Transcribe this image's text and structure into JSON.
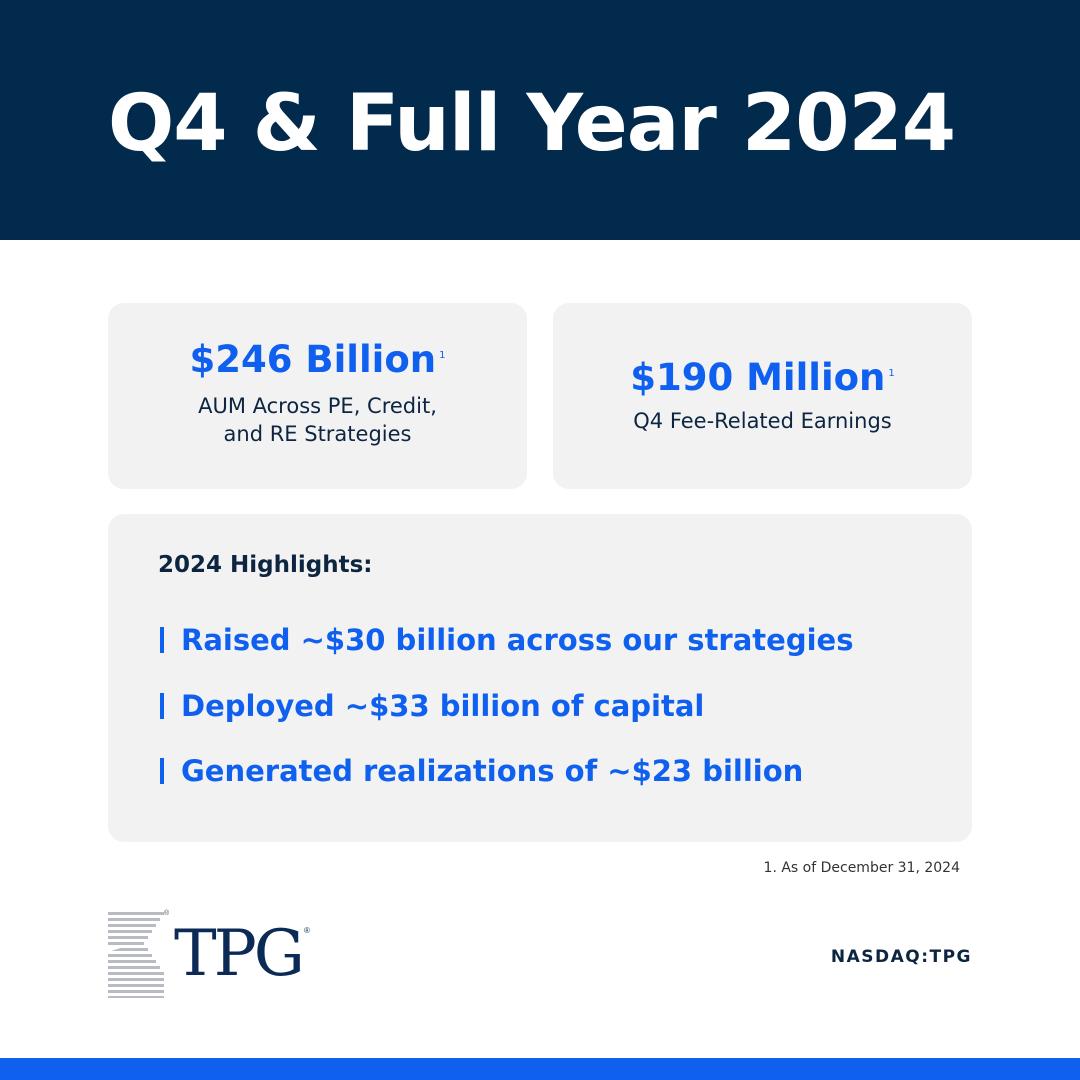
{
  "header": {
    "title": "Q4 & Full Year 2024"
  },
  "stats": [
    {
      "value": "$246 Billion",
      "footnote_marker": "1",
      "label_lines": [
        "AUM Across PE, Credit,",
        "and RE Strategies"
      ]
    },
    {
      "value": "$190 Million",
      "footnote_marker": "1",
      "label_lines": [
        "Q4 Fee-Related Earnings"
      ]
    }
  ],
  "highlights": {
    "title": "2024 Highlights:",
    "items": [
      "Raised ~$30 billion across our strategies",
      "Deployed ~$33 billion of capital",
      "Generated realizations of ~$23 billion"
    ]
  },
  "footnote": "1. As of December 31, 2024",
  "logo": {
    "text": "TPG",
    "registered_mark": "®"
  },
  "ticker": "NASDAQ:TPG",
  "colors": {
    "navy": "#022a4c",
    "accent_blue": "#1060f0",
    "card_gray": "#f2f2f2",
    "text_dark": "#0d2540"
  }
}
